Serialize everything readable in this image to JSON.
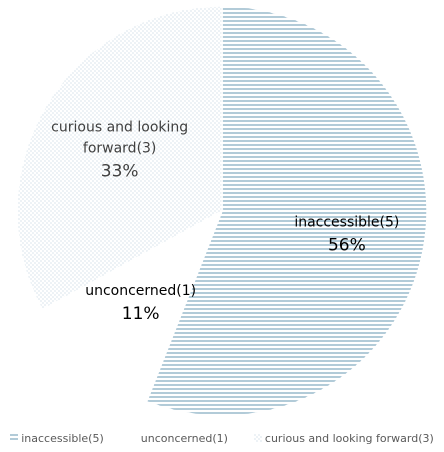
{
  "chart_data": {
    "type": "pie",
    "categories": [
      "inaccessible(5)",
      "unconcerned(1)",
      "curious and looking forward(3)"
    ],
    "values": [
      56,
      11,
      33
    ],
    "counts": [
      5,
      1,
      3
    ],
    "percent_labels": [
      "56%",
      "11%",
      "33%"
    ],
    "slice_label_lines": [
      [
        "inaccessible(5)"
      ],
      [
        "unconcerned(1)"
      ],
      [
        "curious and looking",
        "forward(3)"
      ]
    ],
    "colors": [
      "#7fa9bf",
      "#ffffff",
      "#a9c4d2"
    ],
    "patterns": [
      "horizontal-lines",
      "solid",
      "dots"
    ],
    "legend_position": "bottom",
    "title": ""
  },
  "legend": {
    "items": [
      {
        "label": "inaccessible(5)",
        "pattern": "horizontal-lines"
      },
      {
        "label": "unconcerned(1)",
        "pattern": "solid"
      },
      {
        "label": "curious and looking forward(3)",
        "pattern": "dots"
      }
    ]
  }
}
